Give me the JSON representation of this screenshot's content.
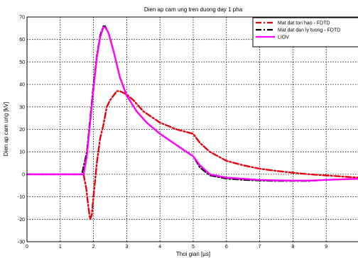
{
  "chart_data": {
    "type": "line",
    "title": "Dien ap cam ung tren duong day 1 pha",
    "xlabel": "Thoi gian [µs]",
    "ylabel": "Dien ap cam ung [kV]",
    "xlim": [
      0,
      10
    ],
    "ylim": [
      -30,
      70
    ],
    "xticks": [
      "0",
      "1",
      "2",
      "3",
      "4",
      "5",
      "6",
      "7",
      "8",
      "9"
    ],
    "yticks": [
      "-30",
      "-20",
      "-10",
      "0",
      "10",
      "20",
      "30",
      "40",
      "50",
      "60",
      "70"
    ],
    "grid": true,
    "legend_position": "top-right",
    "series": [
      {
        "name": "Mat dat ton hao - FDTD",
        "color": "#e8000b",
        "dash": "dashdot",
        "x": [
          0,
          1.7,
          1.78,
          1.85,
          1.9,
          1.95,
          2.0,
          2.1,
          2.2,
          2.3,
          2.4,
          2.5,
          2.6,
          2.7,
          2.8,
          3.0,
          3.2,
          3.5,
          4.0,
          4.5,
          5.0,
          5.2,
          5.5,
          6.0,
          6.5,
          7.0,
          7.5,
          8.0,
          8.5,
          9.0,
          9.5,
          10.0
        ],
        "y": [
          0,
          0,
          -6,
          -15,
          -20,
          -18,
          -10,
          5,
          16,
          22,
          30,
          33,
          35,
          37,
          37,
          35.5,
          33,
          28,
          23,
          20,
          18,
          14,
          10,
          6,
          4,
          2.5,
          1.5,
          0.7,
          0,
          -0.5,
          -1,
          -1.5
        ]
      },
      {
        "name": "Mat dat dan ly tuong - FDTD",
        "color": "#000000",
        "dash": "dashdot",
        "x": [
          0,
          1.65,
          1.8,
          1.9,
          2.0,
          2.1,
          2.2,
          2.3,
          2.35,
          2.45,
          2.6,
          2.8,
          3.0,
          3.3,
          3.6,
          4.0,
          4.5,
          4.8,
          5.0,
          5.2,
          5.5,
          6.0,
          6.5,
          7.0,
          7.5,
          8.0,
          8.5,
          9.0,
          9.5,
          10.0
        ],
        "y": [
          0,
          0,
          10,
          25,
          40,
          53,
          62,
          66,
          66,
          63,
          55,
          43,
          35,
          28,
          23,
          18,
          13,
          10,
          8,
          3,
          -0.5,
          -2,
          -2.5,
          -2.8,
          -3,
          -3,
          -3,
          -2.5,
          -2.2,
          -2
        ]
      },
      {
        "name": "LIOV",
        "color": "#ff00ff",
        "dash": "solid",
        "x": [
          0,
          1.7,
          1.8,
          1.9,
          2.0,
          2.1,
          2.2,
          2.3,
          2.35,
          2.45,
          2.6,
          2.8,
          3.0,
          3.3,
          3.6,
          4.0,
          4.5,
          4.8,
          5.0,
          5.2,
          5.5,
          6.0,
          6.5,
          7.0,
          7.5,
          8.0,
          8.5,
          9.0,
          9.5,
          10.0
        ],
        "y": [
          0,
          0,
          8,
          23,
          38,
          52,
          61,
          65.5,
          65.5,
          63,
          55,
          43,
          35,
          28,
          23,
          18,
          13,
          10,
          8,
          4,
          0,
          -1.5,
          -2,
          -2.5,
          -2.7,
          -2.8,
          -2.8,
          -2.5,
          -2.2,
          -2
        ]
      }
    ]
  }
}
